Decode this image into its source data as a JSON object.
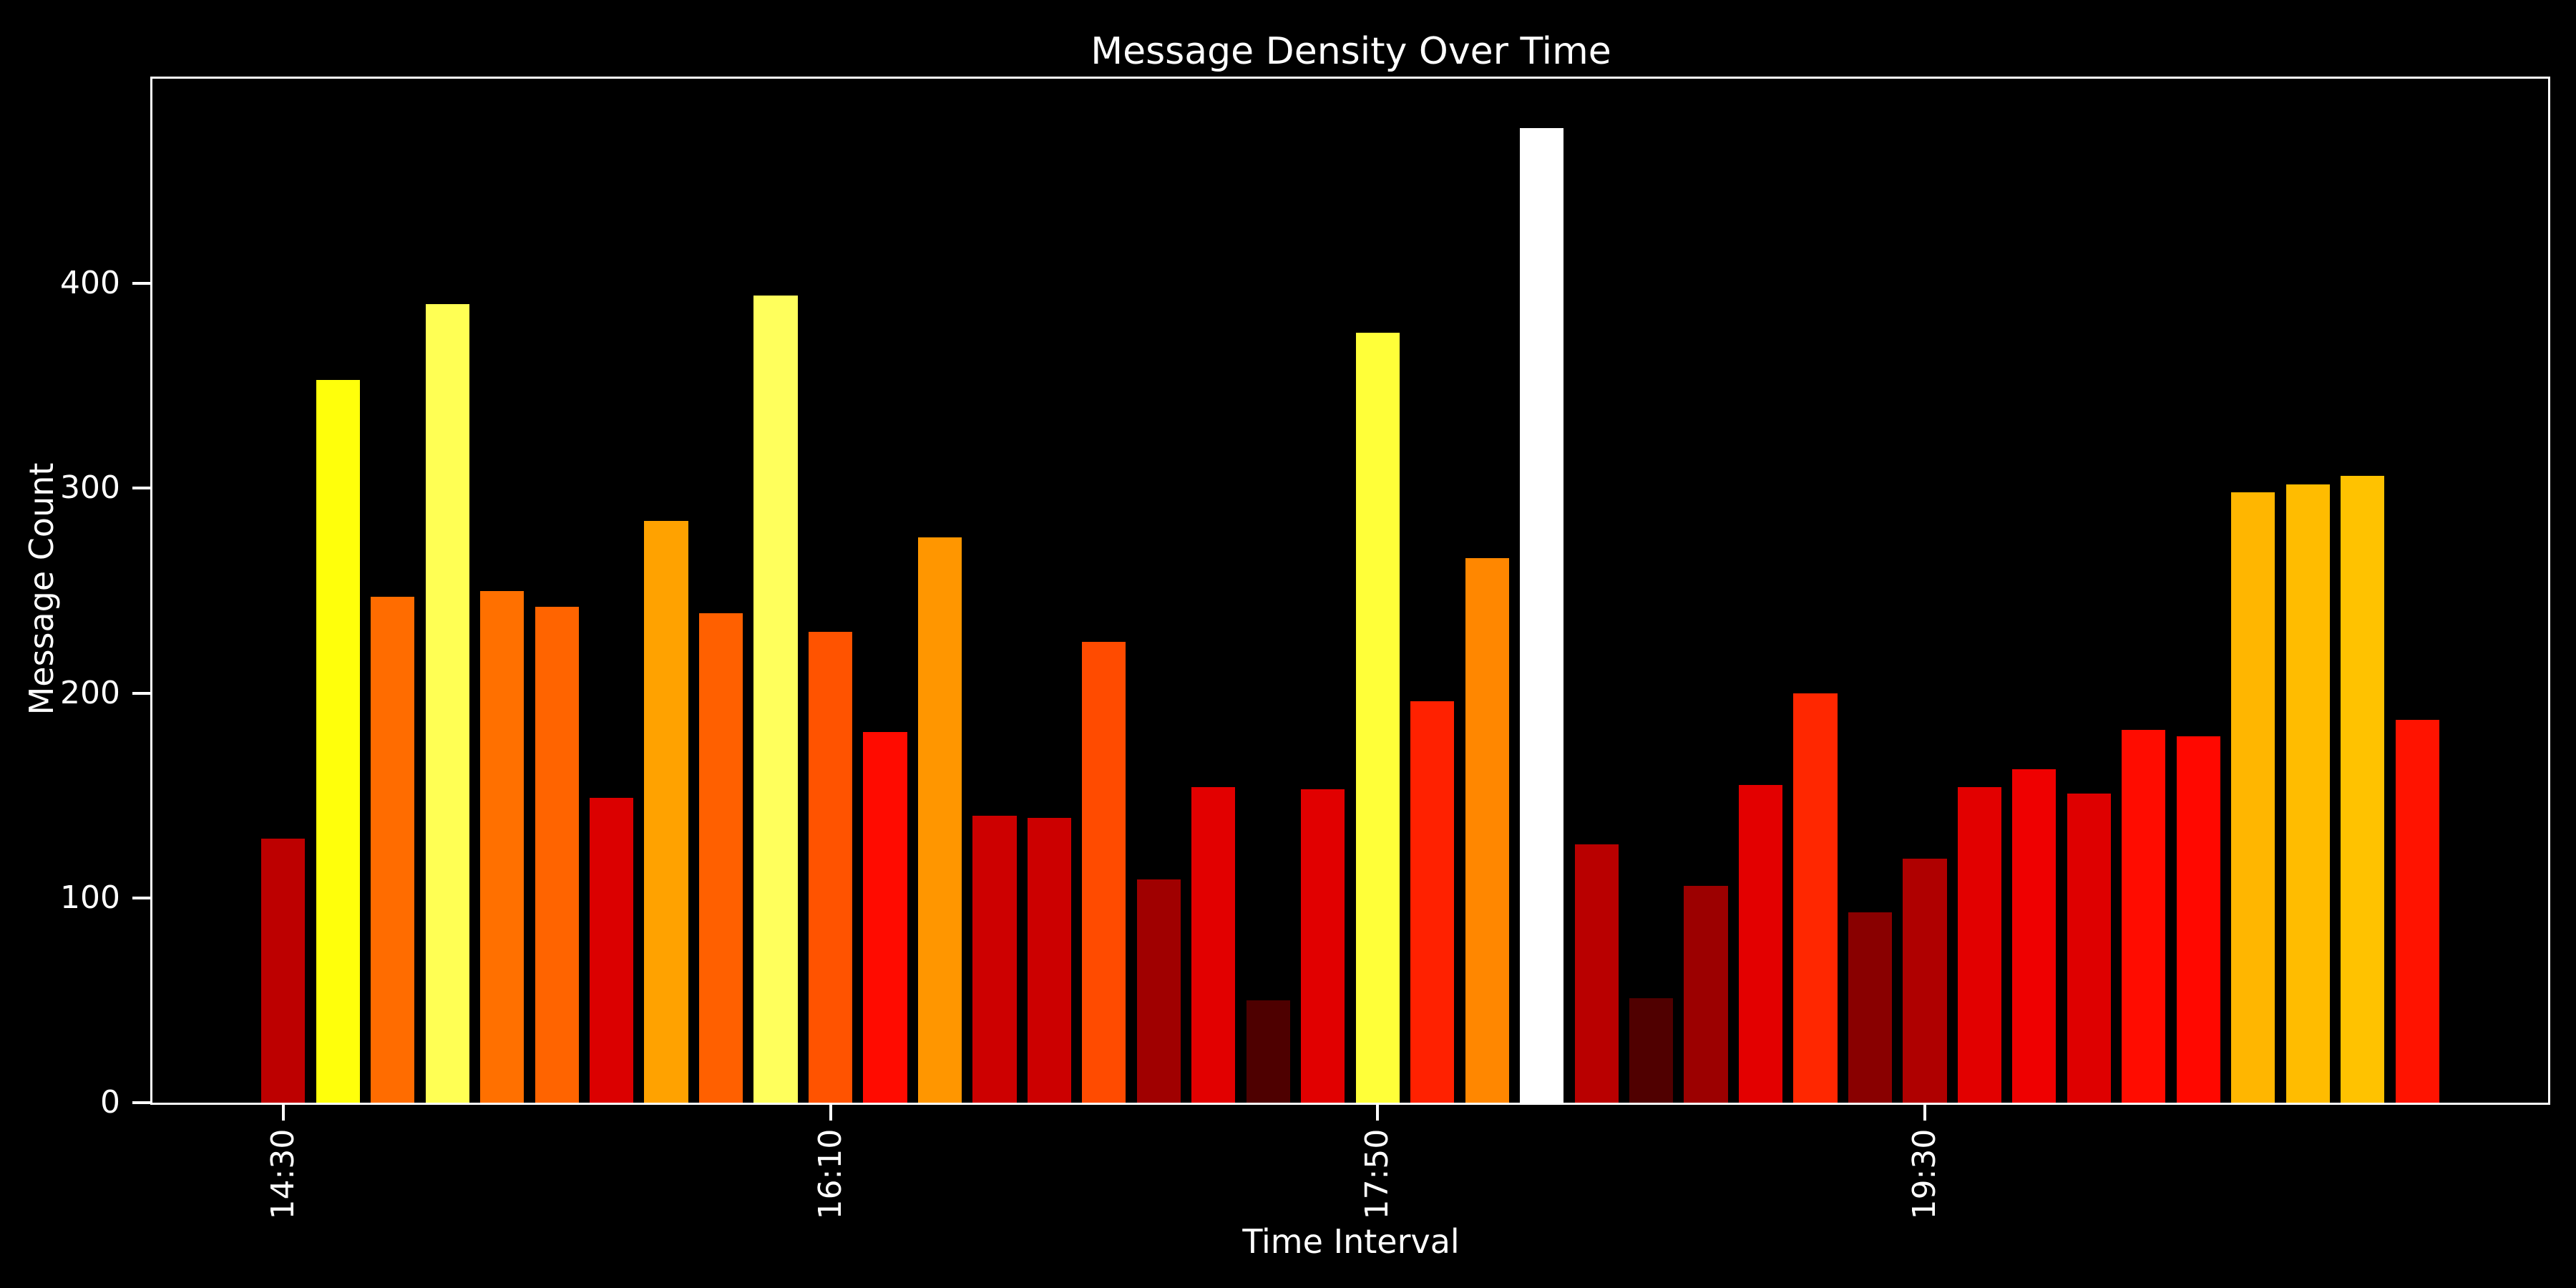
{
  "chart_data": {
    "type": "bar",
    "title": "Message Density Over Time",
    "xlabel": "Time Interval",
    "ylabel": "Message Count",
    "background_color": "#000000",
    "text_color": "#ffffff",
    "axis_color": "#ffffff",
    "colormap": "hot",
    "grid": false,
    "legend": false,
    "ylim": [
      0,
      500
    ],
    "y_ticks": [
      0,
      100,
      200,
      300,
      400
    ],
    "x_ticks": [
      {
        "label": "14:30",
        "bar_index": 0
      },
      {
        "label": "16:10",
        "bar_index": 10
      },
      {
        "label": "17:50",
        "bar_index": 20
      },
      {
        "label": "19:30",
        "bar_index": 30
      }
    ],
    "values": [
      129,
      353,
      247,
      390,
      250,
      242,
      149,
      284,
      239,
      394,
      230,
      181,
      276,
      140,
      139,
      225,
      109,
      154,
      50,
      153,
      376,
      196,
      266,
      476,
      126,
      51,
      106,
      155,
      200,
      93,
      119,
      154,
      163,
      151,
      182,
      179,
      298,
      302,
      306,
      187
    ],
    "bar_colors": [
      "#BD0000",
      "#FFFF0B",
      "#FF6C00",
      "#FFFF54",
      "#FF7000",
      "#FF6400",
      "#DB0000",
      "#FFA200",
      "#FF6000",
      "#FFFF5C",
      "#FF5300",
      "#FF0B00",
      "#FF9600",
      "#CD0000",
      "#CC0000",
      "#FF4B00",
      "#A00000",
      "#E20000",
      "#4E0000",
      "#E10000",
      "#FFFF39",
      "#FF2100",
      "#FF8700",
      "#FFFFFF",
      "#B90000",
      "#500000",
      "#9C0000",
      "#E30000",
      "#FF2700",
      "#890000",
      "#AF0000",
      "#E20000",
      "#EF0000",
      "#DE0000",
      "#FF0C00",
      "#FF0800",
      "#FFB600",
      "#FFBC00",
      "#FFC200",
      "#FF1300"
    ]
  }
}
